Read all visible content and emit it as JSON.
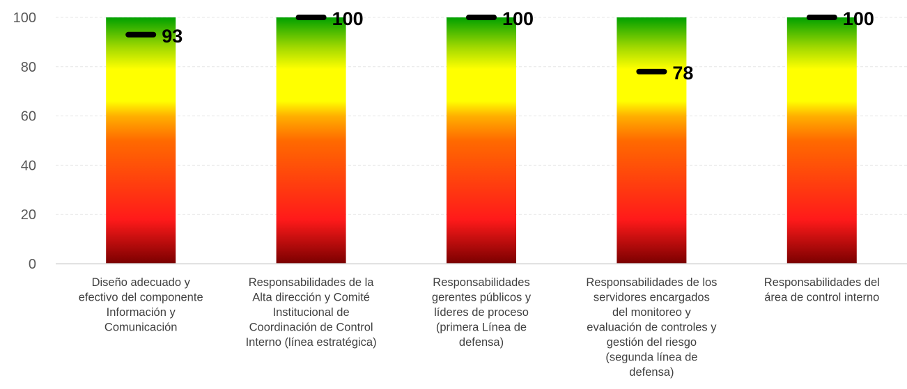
{
  "chart_data": {
    "type": "bar",
    "title": "",
    "xlabel": "",
    "ylabel": "",
    "ylim": [
      0,
      100
    ],
    "yticks": [
      0,
      20,
      40,
      60,
      80,
      100
    ],
    "grid": true,
    "categories": [
      [
        "Diseño adecuado y",
        "efectivo del componente",
        "Información y",
        "Comunicación"
      ],
      [
        "Responsabilidades de la",
        "Alta dirección y Comité",
        "Institucional de",
        "Coordinación de Control",
        "Interno (línea estratégica)"
      ],
      [
        "Responsabilidades",
        "gerentes públicos y",
        "líderes de proceso",
        "(primera Línea de",
        "defensa)"
      ],
      [
        "Responsabilidades de los",
        "servidores encargados",
        "del monitoreo y",
        "evaluación de controles y",
        "gestión del riesgo",
        "(segunda línea de",
        "defensa)"
      ],
      [
        "Responsabilidades del",
        "área de control interno"
      ]
    ],
    "background_range": 100,
    "values": [
      93,
      100,
      100,
      78,
      100
    ],
    "value_labels": [
      "93",
      "100",
      "100",
      "78",
      "100"
    ],
    "colors": {
      "scale_bottom": "#7a0000",
      "scale_red": "#ff1a1a",
      "scale_orange": "#ff6a00",
      "scale_yellow": "#ffff00",
      "scale_green": "#00a000",
      "marker": "#000000",
      "grid": "#e6e6e6",
      "axis": "#d9d9d9"
    }
  }
}
